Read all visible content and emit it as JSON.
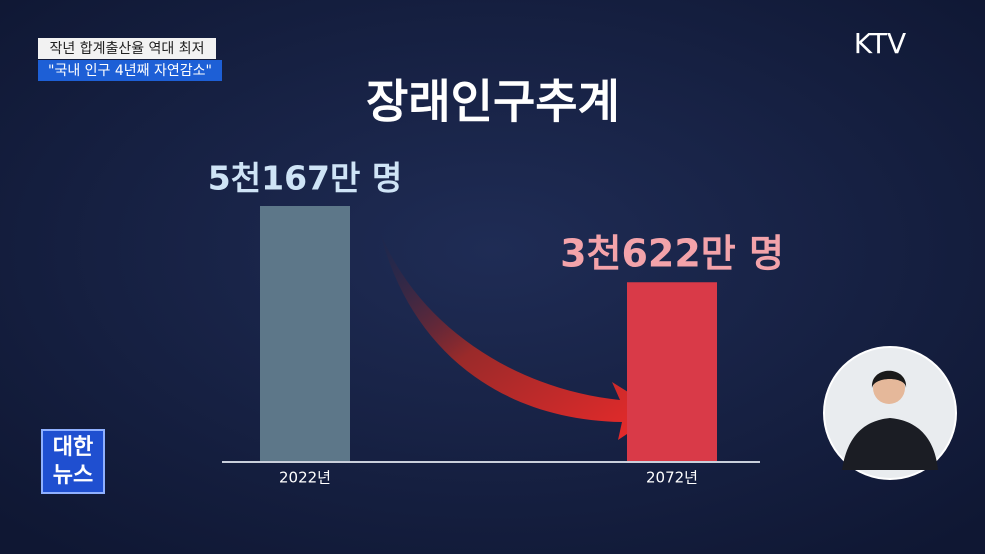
{
  "chart_data": {
    "type": "bar",
    "title": "장래인구추계",
    "categories": [
      "2022년",
      "2072년"
    ],
    "values": [
      5167,
      3622
    ],
    "value_labels": [
      "5천167만 명",
      "3천622만 명"
    ],
    "colors": [
      "#5d7789",
      "#d93a48"
    ],
    "label_colors": [
      "#cfe4f6",
      "#f3a3aa"
    ]
  },
  "captions": [
    "작년 합계출산율 역대 최저",
    "\"국내 인구 4년째 자연감소\""
  ],
  "channel": "KTV",
  "program": [
    "대한",
    "뉴스"
  ]
}
